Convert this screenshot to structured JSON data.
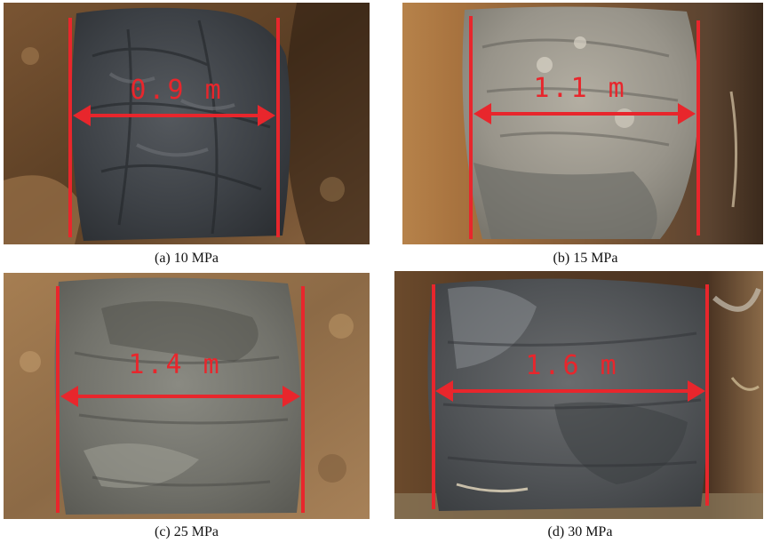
{
  "panels": [
    {
      "caption": "(a) 10 MPa",
      "measurement": "0.9 m"
    },
    {
      "caption": "(b) 15 MPa",
      "measurement": "1.1 m"
    },
    {
      "caption": "(c) 25 MPa",
      "measurement": "1.4 m"
    },
    {
      "caption": "(d) 30 MPa",
      "measurement": "1.6 m"
    }
  ],
  "colors": {
    "annotation": "#e8262c",
    "soil_dark": "#6b4a2a",
    "soil_light": "#b98b5a",
    "rock_dark": "#3e4247",
    "rock_light": "#9a9890"
  },
  "icons": [
    "double-headed-arrow",
    "boundary-line"
  ]
}
